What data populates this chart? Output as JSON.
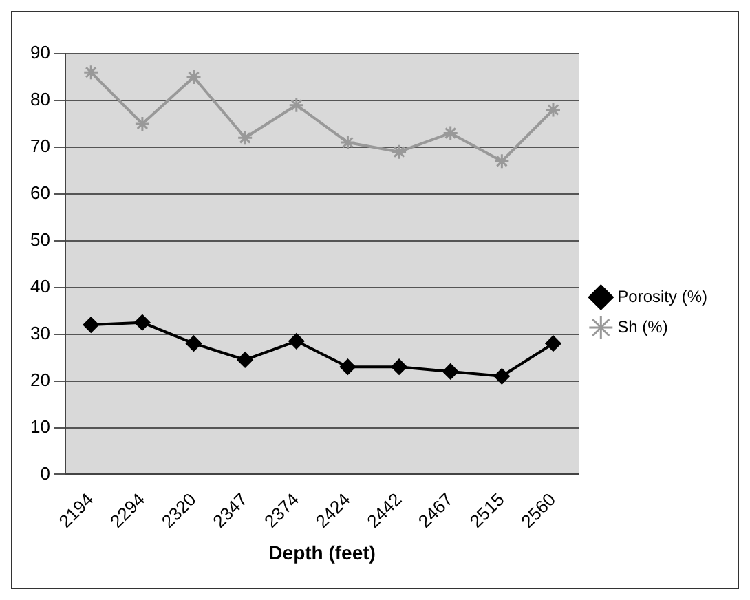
{
  "chart_data": {
    "type": "line",
    "xlabel": "Depth (feet)",
    "categories": [
      "2194",
      "2294",
      "2320",
      "2347",
      "2374",
      "2424",
      "2442",
      "2467",
      "2515",
      "2560"
    ],
    "series": [
      {
        "name": "Porosity (%)",
        "color": "#000000",
        "marker": "diamond",
        "values": [
          32,
          32.5,
          28,
          24.5,
          28.5,
          23,
          23,
          22,
          21,
          28
        ]
      },
      {
        "name": "Sh (%)",
        "color": "#999999",
        "marker": "cross",
        "values": [
          86,
          75,
          85,
          72,
          79,
          71,
          69,
          73,
          67,
          78
        ]
      }
    ],
    "ylim": [
      0,
      90
    ],
    "yticks": [
      0,
      10,
      20,
      30,
      40,
      50,
      60,
      70,
      80,
      90
    ],
    "grid": "y",
    "legend": "right"
  }
}
